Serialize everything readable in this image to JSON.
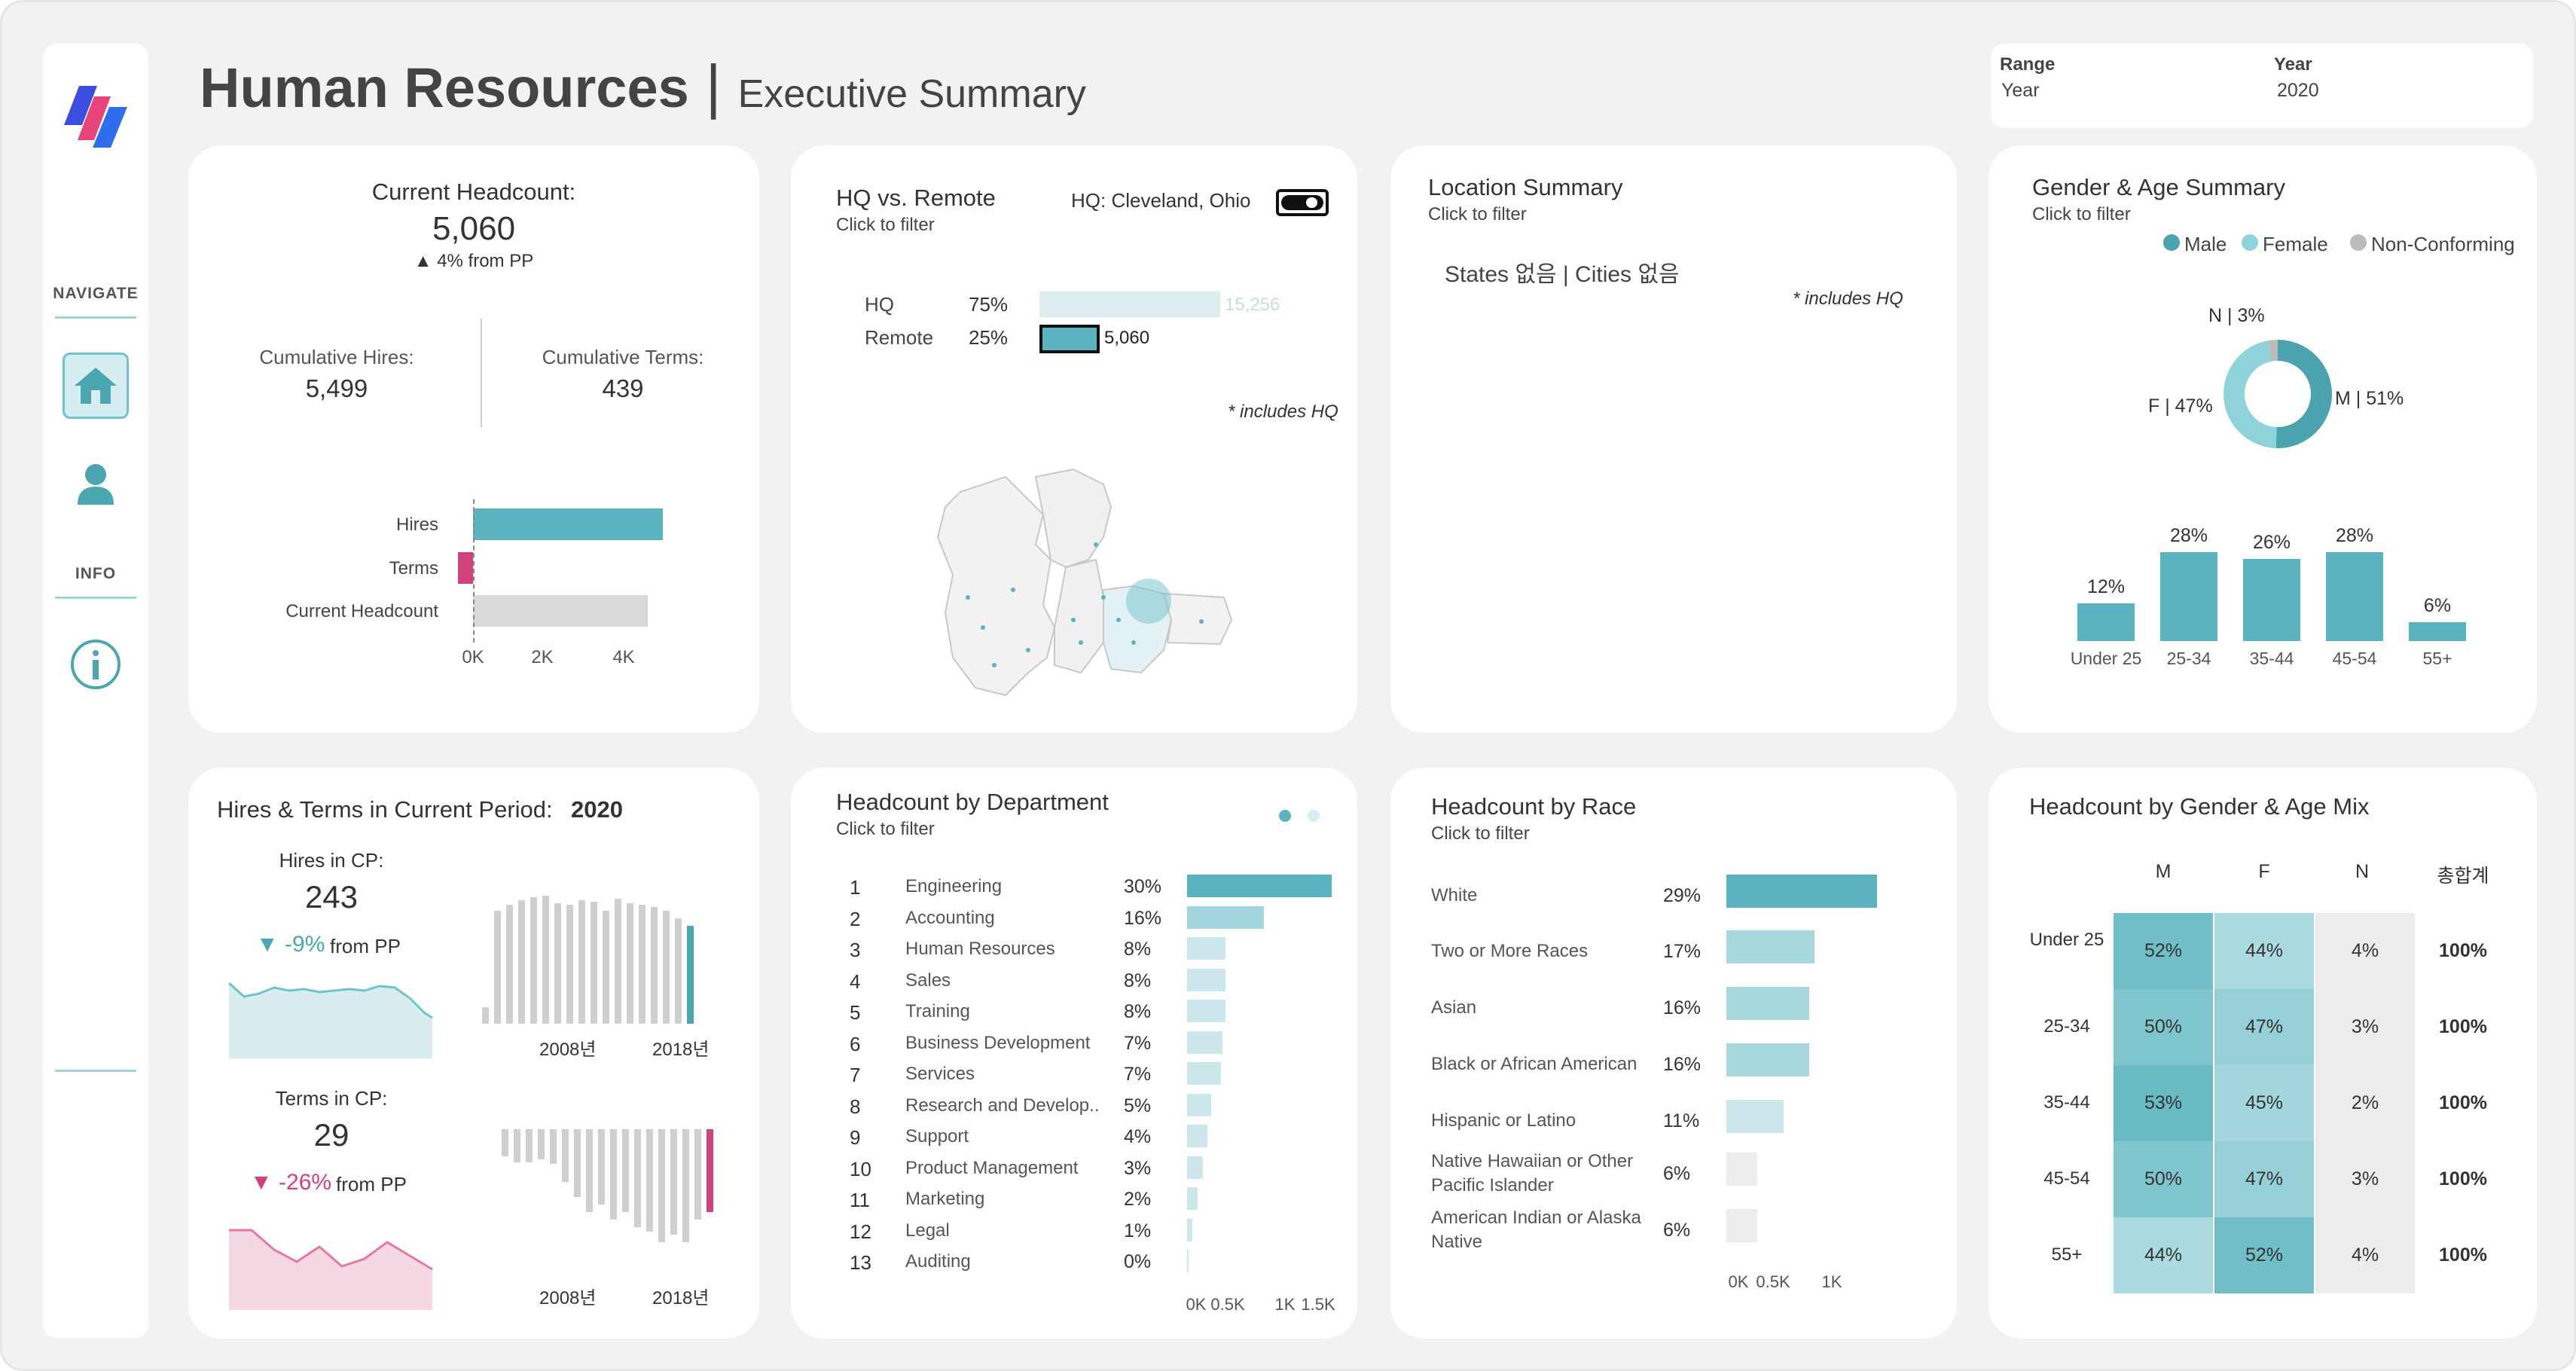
{
  "app": {
    "title": "Human Resources",
    "subtitle": "Executive Summary"
  },
  "params": {
    "range_label": "Range",
    "range_value": "Year",
    "year_label": "Year",
    "year_value": "2020"
  },
  "sidebar": {
    "navigate_label": "NAVIGATE",
    "info_label": "INFO",
    "home_icon": "home-icon",
    "person_icon": "person-icon",
    "info_icon": "info-icon"
  },
  "colors": {
    "teal": "#5ab3be",
    "pink": "#d2417d",
    "light_teal": "#a7d8de",
    "grey": "#d9d9d9"
  },
  "headcount": {
    "title": "Current Headcount:",
    "value": "5,060",
    "change": "▲ 4% from PP",
    "hires_label": "Cumulative Hires:",
    "hires_value": "5,499",
    "terms_label": "Cumulative Terms:",
    "terms_value": "439",
    "chart": {
      "categories": [
        "Hires",
        "Terms",
        "Current Headcount"
      ],
      "values": [
        5499,
        -439,
        5060
      ],
      "ticks": [
        "0K",
        "2K",
        "4K"
      ],
      "xlim": [
        0,
        6000
      ]
    }
  },
  "hq": {
    "title": "HQ vs. Remote",
    "subtitle": "Click to filter",
    "hq_label": "HQ: Cleveland, Ohio",
    "rows": [
      {
        "label": "HQ",
        "pct": "75%",
        "value": 15256,
        "value_label": "15,256"
      },
      {
        "label": "Remote",
        "pct": "25%",
        "value": 5060,
        "value_label": "5,060"
      }
    ],
    "note": "* includes HQ"
  },
  "location": {
    "title": "Location Summary",
    "subtitle": "Click to filter",
    "summary": "States 없음 | Cities 없음",
    "note": "* includes HQ"
  },
  "gender": {
    "title": "Gender & Age Summary",
    "subtitle": "Click to filter",
    "legend": [
      {
        "label": "Male",
        "color": "#4aa3ae"
      },
      {
        "label": "Female",
        "color": "#8fd3da"
      },
      {
        "label": "Non-Conforming",
        "color": "#bbbbbb"
      }
    ],
    "donut": [
      {
        "label": "M | 51%",
        "value": 51
      },
      {
        "label": "F | 47%",
        "value": 47
      },
      {
        "label": "N | 3%",
        "value": 3
      }
    ],
    "ages": {
      "categories": [
        "Under 25",
        "25-34",
        "35-44",
        "45-54",
        "55+"
      ],
      "values": [
        12,
        28,
        26,
        28,
        6
      ],
      "labels": [
        "12%",
        "28%",
        "26%",
        "28%",
        "6%"
      ]
    }
  },
  "hires_terms": {
    "title": "Hires & Terms in Current Period:",
    "year": "2020",
    "hires_label": "Hires in CP:",
    "hires_value": "243",
    "hires_change": "▼ -9%",
    "hires_from": "from PP",
    "terms_label": "Terms in CP:",
    "terms_value": "29",
    "terms_change": "▼ -26%",
    "terms_from": "from PP",
    "axis": [
      "2008년",
      "2018년"
    ]
  },
  "dept": {
    "title": "Headcount by Department",
    "subtitle": "Click to filter",
    "rows": [
      {
        "rank": "1",
        "name": "Engineering",
        "pct": "30%",
        "value": 1520
      },
      {
        "rank": "2",
        "name": "Accounting",
        "pct": "16%",
        "value": 810
      },
      {
        "rank": "3",
        "name": "Human Resources",
        "pct": "8%",
        "value": 405
      },
      {
        "rank": "4",
        "name": "Sales",
        "pct": "8%",
        "value": 405
      },
      {
        "rank": "5",
        "name": "Training",
        "pct": "8%",
        "value": 400
      },
      {
        "rank": "6",
        "name": "Business Development",
        "pct": "7%",
        "value": 370
      },
      {
        "rank": "7",
        "name": "Services",
        "pct": "7%",
        "value": 355
      },
      {
        "rank": "8",
        "name": "Research and Develop..",
        "pct": "5%",
        "value": 255
      },
      {
        "rank": "9",
        "name": "Support",
        "pct": "4%",
        "value": 215
      },
      {
        "rank": "10",
        "name": "Product Management",
        "pct": "3%",
        "value": 165
      },
      {
        "rank": "11",
        "name": "Marketing",
        "pct": "2%",
        "value": 110
      },
      {
        "rank": "12",
        "name": "Legal",
        "pct": "1%",
        "value": 55
      },
      {
        "rank": "13",
        "name": "Auditing",
        "pct": "0%",
        "value": 12
      }
    ],
    "ticks": [
      "0K",
      "0.5K",
      "1K",
      "1.5K"
    ]
  },
  "race": {
    "title": "Headcount by Race",
    "subtitle": "Click to filter",
    "rows": [
      {
        "name1": "White",
        "name2": "",
        "pct": "29%",
        "value": 1470
      },
      {
        "name1": "Two or More Races",
        "name2": "",
        "pct": "17%",
        "value": 860
      },
      {
        "name1": "Asian",
        "name2": "",
        "pct": "16%",
        "value": 810
      },
      {
        "name1": "Black or African American",
        "name2": "",
        "pct": "16%",
        "value": 810
      },
      {
        "name1": "Hispanic or Latino",
        "name2": "",
        "pct": "11%",
        "value": 560
      },
      {
        "name1": "Native Hawaiian or Other",
        "name2": "Pacific Islander",
        "pct": "6%",
        "value": 300
      },
      {
        "name1": "American Indian or Alaska",
        "name2": "Native",
        "pct": "6%",
        "value": 300
      }
    ],
    "ticks": [
      "0K",
      "0.5K",
      "1K"
    ]
  },
  "mix": {
    "title": "Headcount by Gender & Age Mix",
    "cols": [
      "M",
      "F",
      "N",
      "총합계"
    ],
    "rows": [
      {
        "age": "Under 25",
        "m": "52%",
        "f": "44%",
        "n": "4%",
        "total": "100%"
      },
      {
        "age": "25-34",
        "m": "50%",
        "f": "47%",
        "n": "3%",
        "total": "100%"
      },
      {
        "age": "35-44",
        "m": "53%",
        "f": "45%",
        "n": "2%",
        "total": "100%"
      },
      {
        "age": "45-54",
        "m": "50%",
        "f": "47%",
        "n": "3%",
        "total": "100%"
      },
      {
        "age": "55+",
        "m": "44%",
        "f": "52%",
        "n": "4%",
        "total": "100%"
      }
    ]
  }
}
